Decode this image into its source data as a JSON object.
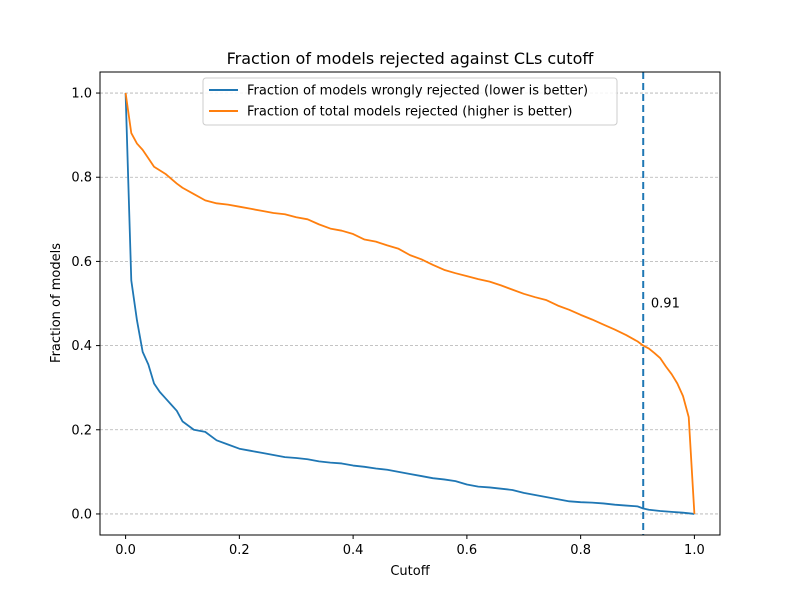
{
  "chart_data": {
    "type": "line",
    "title": "Fraction of models rejected against CLs cutoff",
    "xlabel": "Cutoff",
    "ylabel": "Fraction of models",
    "xlim": [
      -0.045,
      1.045
    ],
    "ylim": [
      -0.05,
      1.05
    ],
    "xticks": [
      0.0,
      0.2,
      0.4,
      0.6,
      0.8,
      1.0
    ],
    "xtick_labels": [
      "0.0",
      "0.2",
      "0.4",
      "0.6",
      "0.8",
      "1.0"
    ],
    "yticks": [
      0.0,
      0.2,
      0.4,
      0.6,
      0.8,
      1.0
    ],
    "ytick_labels": [
      "0.0",
      "0.2",
      "0.4",
      "0.6",
      "0.8",
      "1.0"
    ],
    "grid": "y-dashed",
    "legend_position": "top-center",
    "series": [
      {
        "name": "Fraction of models wrongly rejected (lower is better)",
        "color": "#1f77b4",
        "x": [
          0.0,
          0.01,
          0.02,
          0.03,
          0.04,
          0.05,
          0.06,
          0.07,
          0.08,
          0.09,
          0.1,
          0.12,
          0.14,
          0.16,
          0.18,
          0.2,
          0.22,
          0.24,
          0.26,
          0.28,
          0.3,
          0.32,
          0.34,
          0.36,
          0.38,
          0.4,
          0.42,
          0.44,
          0.46,
          0.48,
          0.5,
          0.52,
          0.54,
          0.56,
          0.58,
          0.6,
          0.62,
          0.64,
          0.66,
          0.68,
          0.7,
          0.72,
          0.74,
          0.76,
          0.78,
          0.8,
          0.82,
          0.84,
          0.86,
          0.88,
          0.9,
          0.91,
          0.92,
          0.94,
          0.96,
          0.98,
          1.0
        ],
        "y": [
          1.0,
          0.555,
          0.46,
          0.385,
          0.355,
          0.31,
          0.29,
          0.275,
          0.26,
          0.245,
          0.22,
          0.2,
          0.195,
          0.175,
          0.165,
          0.155,
          0.15,
          0.145,
          0.14,
          0.135,
          0.133,
          0.13,
          0.125,
          0.122,
          0.12,
          0.115,
          0.112,
          0.108,
          0.105,
          0.1,
          0.095,
          0.09,
          0.085,
          0.082,
          0.078,
          0.07,
          0.065,
          0.063,
          0.06,
          0.057,
          0.05,
          0.045,
          0.04,
          0.035,
          0.03,
          0.028,
          0.027,
          0.025,
          0.022,
          0.02,
          0.018,
          0.013,
          0.01,
          0.007,
          0.005,
          0.003,
          0.0
        ]
      },
      {
        "name": "Fraction of total models rejected (higher is better)",
        "color": "#ff7f0e",
        "x": [
          0.0,
          0.01,
          0.02,
          0.03,
          0.04,
          0.05,
          0.07,
          0.09,
          0.1,
          0.12,
          0.14,
          0.16,
          0.18,
          0.2,
          0.22,
          0.24,
          0.26,
          0.28,
          0.3,
          0.32,
          0.34,
          0.36,
          0.38,
          0.4,
          0.42,
          0.44,
          0.46,
          0.48,
          0.5,
          0.52,
          0.54,
          0.56,
          0.58,
          0.6,
          0.62,
          0.64,
          0.66,
          0.68,
          0.7,
          0.72,
          0.74,
          0.76,
          0.78,
          0.8,
          0.82,
          0.84,
          0.86,
          0.88,
          0.9,
          0.91,
          0.92,
          0.93,
          0.94,
          0.95,
          0.96,
          0.97,
          0.98,
          0.99,
          1.0
        ],
        "y": [
          1.0,
          0.905,
          0.88,
          0.865,
          0.845,
          0.825,
          0.808,
          0.785,
          0.775,
          0.76,
          0.745,
          0.738,
          0.735,
          0.73,
          0.725,
          0.72,
          0.715,
          0.712,
          0.705,
          0.7,
          0.688,
          0.678,
          0.673,
          0.665,
          0.652,
          0.647,
          0.638,
          0.63,
          0.615,
          0.605,
          0.592,
          0.58,
          0.572,
          0.565,
          0.558,
          0.552,
          0.543,
          0.533,
          0.523,
          0.515,
          0.508,
          0.495,
          0.485,
          0.473,
          0.462,
          0.45,
          0.438,
          0.425,
          0.41,
          0.4,
          0.393,
          0.382,
          0.37,
          0.35,
          0.332,
          0.31,
          0.28,
          0.23,
          0.0
        ]
      }
    ],
    "annotations": [
      {
        "type": "vline",
        "x": 0.91,
        "style": "dashed",
        "color": "#1f77b4"
      },
      {
        "type": "text",
        "text": "0.91",
        "x": 0.92,
        "y": 0.5
      }
    ]
  }
}
